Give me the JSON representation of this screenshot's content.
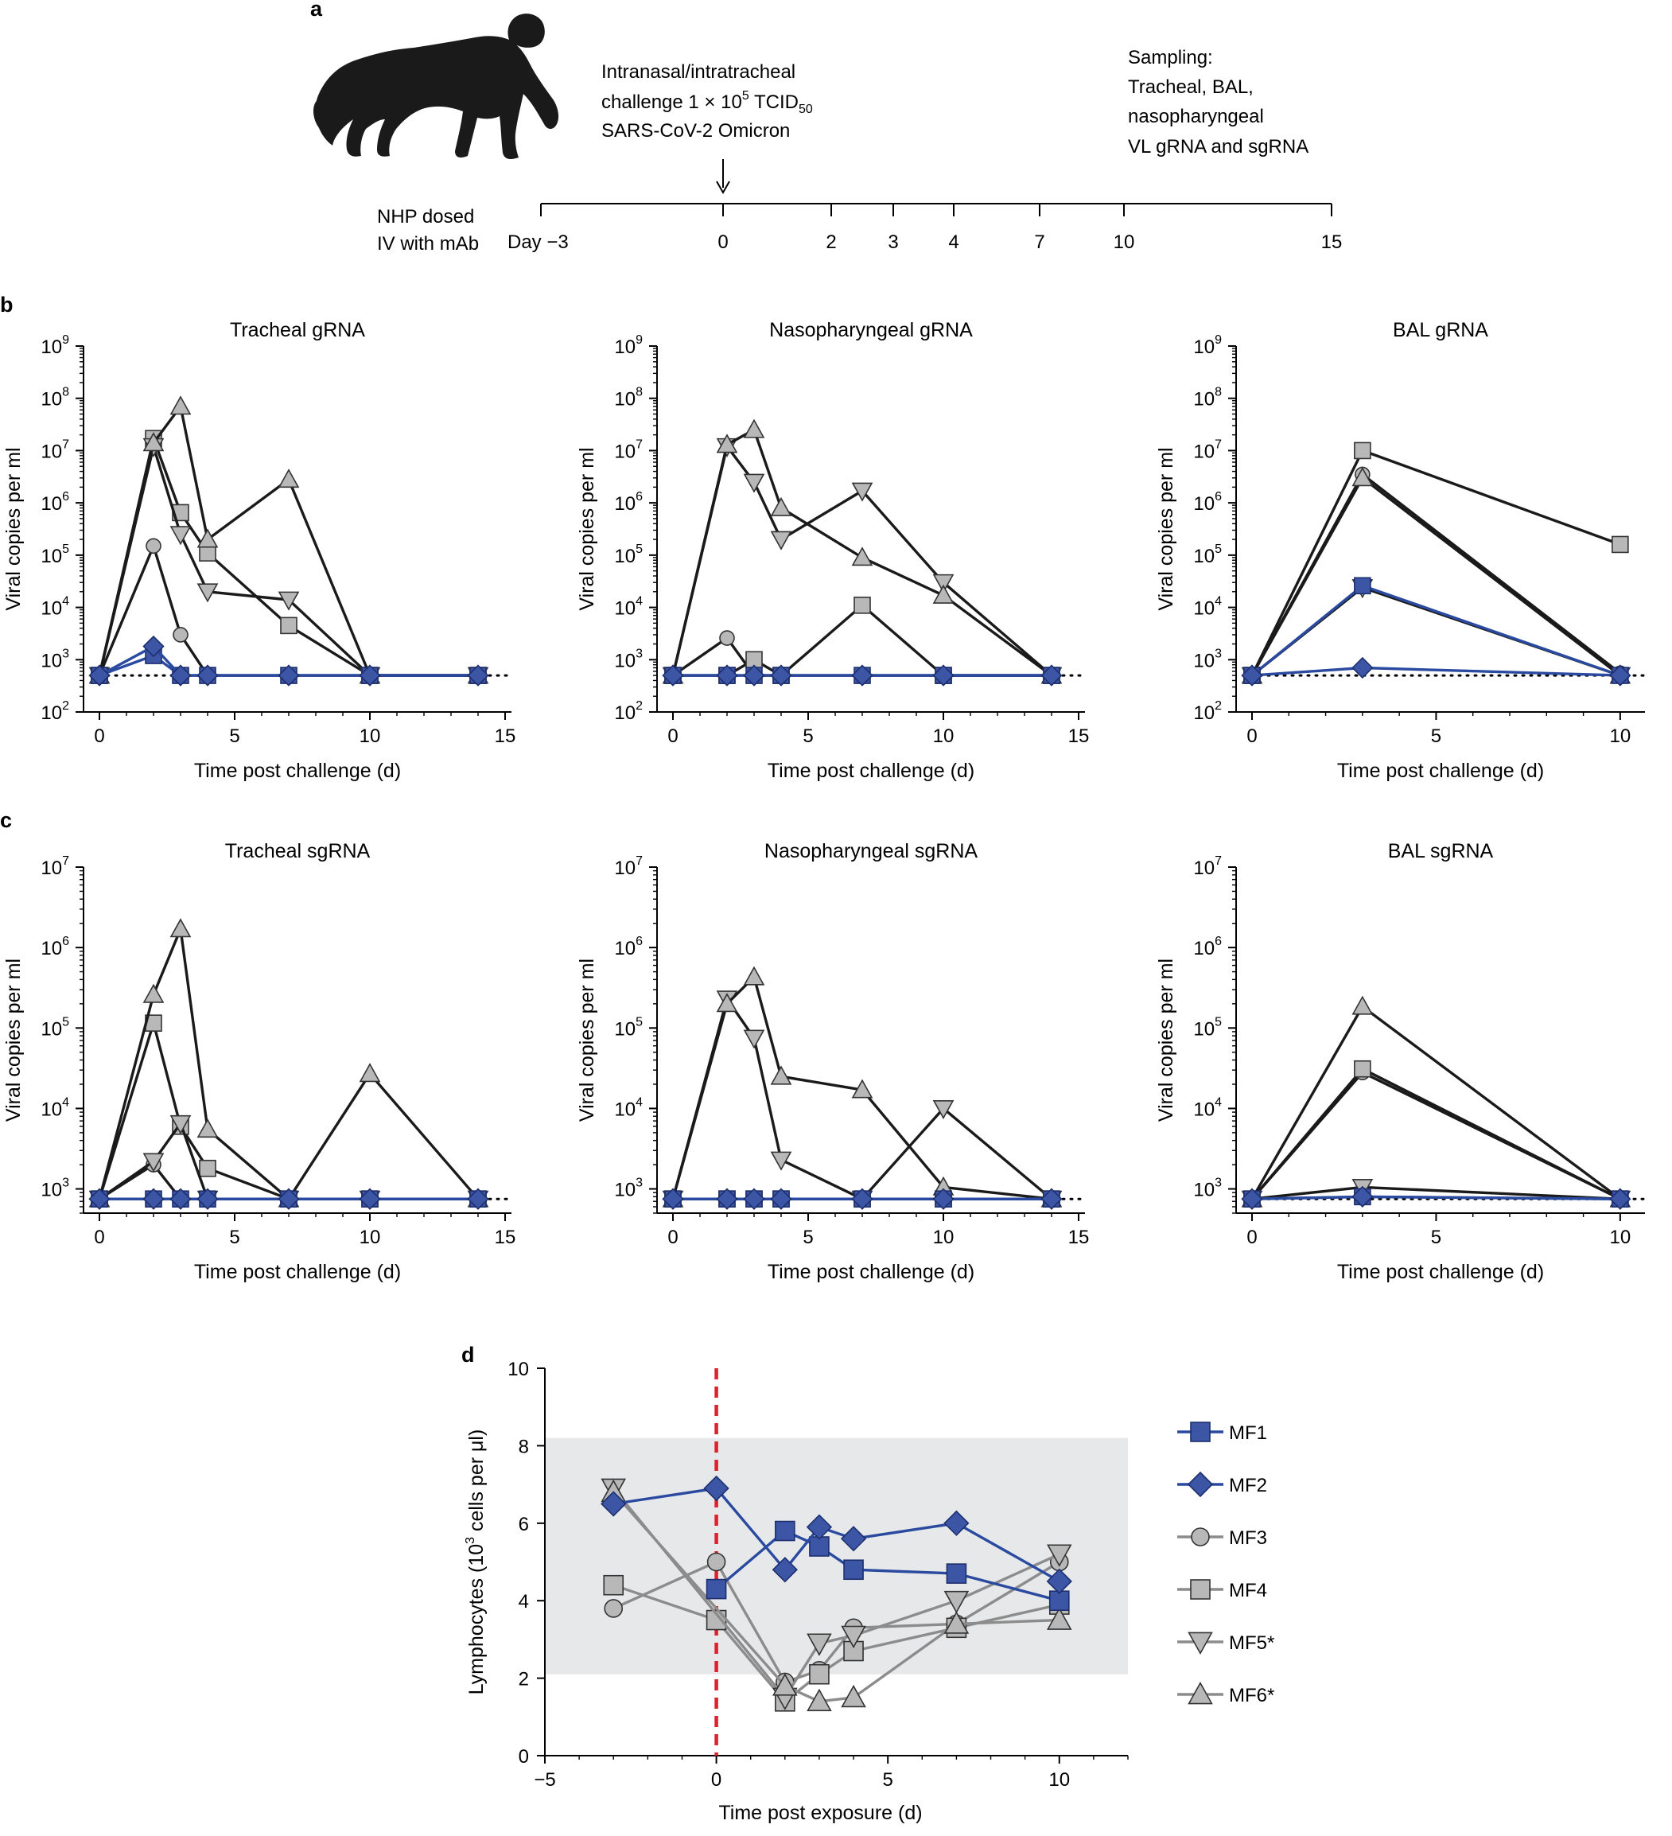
{
  "panels": {
    "a": "a",
    "b": "b",
    "c": "c",
    "d": "d"
  },
  "timeline": {
    "challenge_lines": [
      "Intranasal/intratracheal",
      "challenge 1 × 10",
      "5",
      " TCID",
      "50",
      "SARS-CoV-2 Omicron"
    ],
    "sampling_lines": [
      "Sampling:",
      "Tracheal, BAL,",
      "nasopharyngeal",
      "VL gRNA and sgRNA"
    ],
    "dosing_lines": [
      "NHP dosed",
      "IV with mAb"
    ],
    "day_prefix": "Day −3",
    "days": [
      "0",
      "2",
      "3",
      "4",
      "7",
      "10",
      "15"
    ]
  },
  "styles": {
    "blue_fill": "#3c55a5",
    "blue_line": "#2a4aa0",
    "gray_fill": "#b8b8b8",
    "gray_stroke": "#333333",
    "black_line": "#1a1a1a",
    "gray_line": "#8c8c8c",
    "normal_band": "#e6e8ea",
    "challenge_line": "#e0202a"
  },
  "shared": {
    "ylabel": "Viral copies per ml",
    "xlabel": "Time post challenge (d)",
    "ticks_15": [
      "0",
      "5",
      "10",
      "15"
    ],
    "ticks_10": [
      "0",
      "5",
      "10"
    ],
    "exp_base": "10",
    "gRNA_exps": [
      "3",
      "4",
      "5",
      "6",
      "7",
      "8",
      "9"
    ],
    "sgRNA_exps": [
      "3",
      "4",
      "5",
      "6",
      "7"
    ]
  },
  "chart_data": [
    {
      "id": "tracheal-grna",
      "type": "line",
      "title": "Tracheal gRNA",
      "yscale": "log",
      "ylim": [
        100,
        1000000000
      ],
      "xlim": [
        0,
        15
      ],
      "lod": 500,
      "series": [
        {
          "name": "MF1",
          "marker": "square",
          "color": "blue",
          "x": [
            0,
            2,
            3,
            4,
            7,
            10,
            14
          ],
          "y": [
            500,
            1200,
            500,
            500,
            500,
            500,
            500
          ]
        },
        {
          "name": "MF2",
          "marker": "diamond",
          "color": "blue",
          "x": [
            0,
            2,
            3,
            4,
            7,
            10,
            14
          ],
          "y": [
            500,
            1800,
            500,
            500,
            500,
            500,
            500
          ]
        },
        {
          "name": "MF3",
          "marker": "circle",
          "color": "gray",
          "x": [
            0,
            2,
            3,
            4,
            7,
            10,
            14
          ],
          "y": [
            500,
            150000,
            3000,
            500,
            500,
            500,
            500
          ]
        },
        {
          "name": "MF4",
          "marker": "square",
          "color": "gray",
          "x": [
            0,
            2,
            3,
            4,
            7,
            10,
            14
          ],
          "y": [
            500,
            17000000,
            650000,
            110000,
            4500,
            500,
            500
          ]
        },
        {
          "name": "MF5",
          "marker": "triangle-down",
          "color": "gray",
          "x": [
            0,
            2,
            3,
            4,
            7,
            10,
            14
          ],
          "y": [
            500,
            12000000,
            250000,
            20000,
            14000,
            500,
            500
          ]
        },
        {
          "name": "MF6",
          "marker": "triangle-up",
          "color": "gray",
          "x": [
            0,
            2,
            3,
            4,
            7,
            10,
            14
          ],
          "y": [
            500,
            14000000,
            70000000,
            200000,
            2800000,
            500,
            500
          ]
        }
      ]
    },
    {
      "id": "nasopharyngeal-grna",
      "type": "line",
      "title": "Nasopharyngeal gRNA",
      "yscale": "log",
      "ylim": [
        100,
        1000000000
      ],
      "xlim": [
        0,
        15
      ],
      "lod": 500,
      "series": [
        {
          "name": "MF1",
          "marker": "square",
          "color": "blue",
          "x": [
            0,
            2,
            3,
            4,
            7,
            10,
            14
          ],
          "y": [
            500,
            500,
            500,
            500,
            500,
            500,
            500
          ]
        },
        {
          "name": "MF2",
          "marker": "diamond",
          "color": "blue",
          "x": [
            0,
            2,
            3,
            4,
            7,
            10,
            14
          ],
          "y": [
            500,
            500,
            500,
            500,
            500,
            500,
            500
          ]
        },
        {
          "name": "MF3",
          "marker": "circle",
          "color": "gray",
          "x": [
            0,
            2,
            3,
            4,
            7,
            10,
            14
          ],
          "y": [
            500,
            2600,
            500,
            500,
            500,
            500,
            500
          ]
        },
        {
          "name": "MF4",
          "marker": "square",
          "color": "gray",
          "x": [
            0,
            2,
            3,
            4,
            7,
            10,
            14
          ],
          "y": [
            500,
            500,
            1000,
            500,
            11000,
            500,
            500
          ]
        },
        {
          "name": "MF5",
          "marker": "triangle-down",
          "color": "gray",
          "x": [
            0,
            2,
            3,
            4,
            7,
            10,
            14
          ],
          "y": [
            500,
            12000000,
            2500000,
            200000,
            1700000,
            30000,
            500
          ]
        },
        {
          "name": "MF6",
          "marker": "triangle-up",
          "color": "gray",
          "x": [
            0,
            2,
            3,
            4,
            7,
            10,
            14
          ],
          "y": [
            500,
            13000000,
            25000000,
            800000,
            90000,
            17000,
            500
          ]
        }
      ]
    },
    {
      "id": "bal-grna",
      "type": "line",
      "title": "BAL gRNA",
      "yscale": "log",
      "ylim": [
        100,
        1000000000
      ],
      "xlim": [
        0,
        10.5
      ],
      "lod": 500,
      "series": [
        {
          "name": "MF1",
          "marker": "square",
          "color": "blue",
          "x": [
            0,
            3,
            10
          ],
          "y": [
            500,
            26000,
            500
          ]
        },
        {
          "name": "MF2",
          "marker": "diamond",
          "color": "blue",
          "x": [
            0,
            3,
            10
          ],
          "y": [
            500,
            700,
            500
          ]
        },
        {
          "name": "MF3",
          "marker": "circle",
          "color": "gray",
          "x": [
            0,
            3,
            10
          ],
          "y": [
            500,
            3500000,
            550
          ]
        },
        {
          "name": "MF4",
          "marker": "square",
          "color": "gray",
          "x": [
            0,
            3,
            10
          ],
          "y": [
            500,
            10000000,
            160000
          ]
        },
        {
          "name": "MF5",
          "marker": "triangle-down",
          "color": "gray",
          "x": [
            0,
            3,
            10
          ],
          "y": [
            500,
            24000,
            500
          ]
        },
        {
          "name": "MF6",
          "marker": "triangle-up",
          "color": "gray",
          "x": [
            0,
            3,
            10
          ],
          "y": [
            500,
            3000000,
            500
          ]
        }
      ]
    },
    {
      "id": "tracheal-sgrna",
      "type": "line",
      "title": "Tracheal sgRNA",
      "yscale": "log",
      "ylim": [
        500,
        10000000
      ],
      "xlim": [
        0,
        15
      ],
      "lod": 750,
      "series": [
        {
          "name": "MF1",
          "marker": "square",
          "color": "blue",
          "x": [
            0,
            2,
            3,
            4,
            7,
            10,
            14
          ],
          "y": [
            750,
            750,
            750,
            750,
            750,
            750,
            750
          ]
        },
        {
          "name": "MF2",
          "marker": "diamond",
          "color": "blue",
          "x": [
            0,
            2,
            3,
            4,
            7,
            10,
            14
          ],
          "y": [
            750,
            750,
            750,
            750,
            750,
            750,
            750
          ]
        },
        {
          "name": "MF3",
          "marker": "circle",
          "color": "gray",
          "x": [
            0,
            2,
            3,
            4,
            7,
            10,
            14
          ],
          "y": [
            750,
            2000,
            750,
            750,
            750,
            750,
            750
          ]
        },
        {
          "name": "MF4",
          "marker": "square",
          "color": "gray",
          "x": [
            0,
            2,
            3,
            4,
            7,
            10,
            14
          ],
          "y": [
            750,
            115000,
            6000,
            1800,
            750,
            750,
            750
          ]
        },
        {
          "name": "MF5",
          "marker": "triangle-down",
          "color": "gray",
          "x": [
            0,
            2,
            3,
            4,
            7,
            10,
            14
          ],
          "y": [
            750,
            2200,
            6500,
            750,
            750,
            750,
            750
          ]
        },
        {
          "name": "MF6",
          "marker": "triangle-up",
          "color": "gray",
          "x": [
            0,
            2,
            3,
            4,
            7,
            10,
            14
          ],
          "y": [
            750,
            260000,
            1700000,
            5500,
            750,
            27000,
            750
          ]
        }
      ]
    },
    {
      "id": "nasopharyngeal-sgrna",
      "type": "line",
      "title": "Nasopharyngeal sgRNA",
      "yscale": "log",
      "ylim": [
        500,
        10000000
      ],
      "xlim": [
        0,
        15
      ],
      "lod": 750,
      "series": [
        {
          "name": "MF1",
          "marker": "square",
          "color": "blue",
          "x": [
            0,
            2,
            3,
            4,
            7,
            10,
            14
          ],
          "y": [
            750,
            750,
            750,
            750,
            750,
            750,
            750
          ]
        },
        {
          "name": "MF2",
          "marker": "diamond",
          "color": "blue",
          "x": [
            0,
            2,
            3,
            4,
            7,
            10,
            14
          ],
          "y": [
            750,
            750,
            750,
            750,
            750,
            750,
            750
          ]
        },
        {
          "name": "MF3",
          "marker": "circle",
          "color": "gray",
          "x": [
            0,
            2,
            3,
            4,
            7,
            10,
            14
          ],
          "y": [
            750,
            750,
            750,
            750,
            750,
            750,
            750
          ]
        },
        {
          "name": "MF4",
          "marker": "square",
          "color": "gray",
          "x": [
            0,
            2,
            3,
            4,
            7,
            10,
            14
          ],
          "y": [
            750,
            750,
            750,
            750,
            750,
            750,
            750
          ]
        },
        {
          "name": "MF5",
          "marker": "triangle-down",
          "color": "gray",
          "x": [
            0,
            2,
            3,
            4,
            7,
            10,
            14
          ],
          "y": [
            750,
            230000,
            75000,
            2300,
            750,
            10000,
            750
          ]
        },
        {
          "name": "MF6",
          "marker": "triangle-up",
          "color": "gray",
          "x": [
            0,
            2,
            3,
            4,
            7,
            10,
            14
          ],
          "y": [
            750,
            200000,
            430000,
            25000,
            17000,
            1050,
            750
          ]
        }
      ]
    },
    {
      "id": "bal-sgrna",
      "type": "line",
      "title": "BAL sgRNA",
      "yscale": "log",
      "ylim": [
        500,
        10000000
      ],
      "xlim": [
        0,
        10.5
      ],
      "lod": 750,
      "series": [
        {
          "name": "MF1",
          "marker": "square",
          "color": "blue",
          "x": [
            0,
            3,
            10
          ],
          "y": [
            750,
            800,
            750
          ]
        },
        {
          "name": "MF2",
          "marker": "diamond",
          "color": "blue",
          "x": [
            0,
            3,
            10
          ],
          "y": [
            750,
            800,
            750
          ]
        },
        {
          "name": "MF3",
          "marker": "circle",
          "color": "gray",
          "x": [
            0,
            3,
            10
          ],
          "y": [
            750,
            28000,
            750
          ]
        },
        {
          "name": "MF4",
          "marker": "square",
          "color": "gray",
          "x": [
            0,
            3,
            10
          ],
          "y": [
            750,
            31000,
            750
          ]
        },
        {
          "name": "MF5",
          "marker": "triangle-down",
          "color": "gray",
          "x": [
            0,
            3,
            10
          ],
          "y": [
            750,
            1050,
            750
          ]
        },
        {
          "name": "MF6",
          "marker": "triangle-up",
          "color": "gray",
          "x": [
            0,
            3,
            10
          ],
          "y": [
            750,
            185000,
            750
          ]
        }
      ]
    },
    {
      "id": "lymphocytes",
      "type": "line",
      "title": "",
      "xlabel": "Time post exposure (d)",
      "ylabel_parts": [
        "Lymphocytes (10",
        "3",
        " cells per μl)"
      ],
      "xlim": [
        -5,
        12
      ],
      "ylim": [
        0,
        10
      ],
      "xticks": [
        -5,
        0,
        5,
        10
      ],
      "xtick_labels": [
        "−5",
        "0",
        "5",
        "10"
      ],
      "yticks": [
        0,
        2,
        4,
        6,
        8,
        10
      ],
      "ytick_labels": [
        "0",
        "2",
        "4",
        "6",
        "8",
        "10"
      ],
      "normal_range": [
        2.1,
        8.2
      ],
      "challenge_day": 0,
      "series": [
        {
          "name": "MF1",
          "marker": "square",
          "color": "blue",
          "x": [
            0,
            2,
            3,
            4,
            7,
            10
          ],
          "y": [
            4.3,
            5.8,
            5.4,
            4.8,
            4.7,
            4.0
          ]
        },
        {
          "name": "MF2",
          "marker": "diamond",
          "color": "blue",
          "x": [
            -3,
            0,
            2,
            3,
            4,
            7,
            10
          ],
          "y": [
            6.5,
            6.9,
            4.8,
            5.9,
            5.6,
            6.0,
            4.5
          ]
        },
        {
          "name": "MF3",
          "marker": "circle",
          "color": "gray",
          "x": [
            -3,
            0,
            2,
            3,
            4,
            7,
            10
          ],
          "y": [
            3.8,
            5.0,
            1.9,
            2.2,
            3.3,
            3.4,
            5.0
          ]
        },
        {
          "name": "MF4",
          "marker": "square",
          "color": "gray",
          "x": [
            -3,
            0,
            2,
            3,
            4,
            7,
            10
          ],
          "y": [
            4.4,
            3.5,
            1.4,
            2.1,
            2.7,
            3.3,
            3.9
          ]
        },
        {
          "name": "MF5",
          "marker": "triangle-down",
          "color": "gray",
          "x": [
            -3,
            2,
            3,
            4,
            7,
            10
          ],
          "y": [
            6.9,
            1.5,
            2.9,
            3.1,
            4.0,
            5.2
          ]
        },
        {
          "name": "MF6",
          "marker": "triangle-up",
          "color": "gray",
          "x": [
            -3,
            2,
            3,
            4,
            7,
            10
          ],
          "y": [
            6.8,
            1.8,
            1.4,
            1.5,
            3.4,
            3.5
          ]
        }
      ],
      "legend": [
        {
          "name": "MF1",
          "label": "MF1",
          "marker": "square",
          "color": "blue"
        },
        {
          "name": "MF2",
          "label": "MF2",
          "marker": "diamond",
          "color": "blue"
        },
        {
          "name": "MF3",
          "label": "MF3",
          "marker": "circle",
          "color": "gray"
        },
        {
          "name": "MF4",
          "label": "MF4",
          "marker": "square",
          "color": "gray"
        },
        {
          "name": "MF5",
          "label": "MF5*",
          "marker": "triangle-down",
          "color": "gray"
        },
        {
          "name": "MF6",
          "label": "MF6*",
          "marker": "triangle-up",
          "color": "gray"
        }
      ]
    }
  ]
}
